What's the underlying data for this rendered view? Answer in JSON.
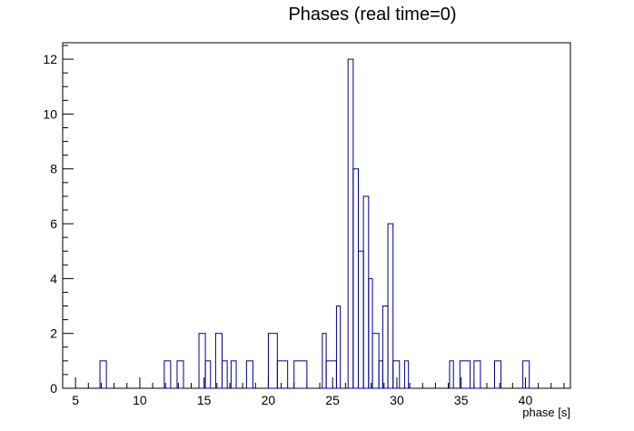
{
  "chart_data": {
    "type": "bar",
    "title": "Phases (real time=0)",
    "xlabel": "phase [s]",
    "ylabel": "",
    "xlim": [
      4,
      43.5
    ],
    "ylim": [
      0,
      12.6
    ],
    "bin_width": 0.5,
    "x_ticks": [
      5,
      10,
      15,
      20,
      25,
      30,
      35,
      40
    ],
    "y_ticks": [
      0,
      2,
      4,
      6,
      8,
      10,
      12
    ],
    "grid": false,
    "legend": "none",
    "line_color": "#00008b",
    "series": [
      {
        "values": [
          {
            "x0": 6.9,
            "x1": 7.4,
            "y": 1
          },
          {
            "x0": 11.9,
            "x1": 12.4,
            "y": 1
          },
          {
            "x0": 12.9,
            "x1": 13.4,
            "y": 1
          },
          {
            "x0": 14.6,
            "x1": 15.1,
            "y": 2
          },
          {
            "x0": 15.1,
            "x1": 15.5,
            "y": 1
          },
          {
            "x0": 15.9,
            "x1": 16.4,
            "y": 2
          },
          {
            "x0": 16.4,
            "x1": 16.8,
            "y": 1
          },
          {
            "x0": 17.1,
            "x1": 17.5,
            "y": 1
          },
          {
            "x0": 18.3,
            "x1": 18.8,
            "y": 1
          },
          {
            "x0": 20.0,
            "x1": 20.7,
            "y": 2
          },
          {
            "x0": 20.7,
            "x1": 21.5,
            "y": 1
          },
          {
            "x0": 22.0,
            "x1": 23.0,
            "y": 1
          },
          {
            "x0": 24.2,
            "x1": 24.5,
            "y": 2
          },
          {
            "x0": 24.5,
            "x1": 25.3,
            "y": 1
          },
          {
            "x0": 25.3,
            "x1": 25.6,
            "y": 3
          },
          {
            "x0": 26.2,
            "x1": 26.6,
            "y": 12
          },
          {
            "x0": 26.6,
            "x1": 27.0,
            "y": 8
          },
          {
            "x0": 27.0,
            "x1": 27.4,
            "y": 5
          },
          {
            "x0": 27.4,
            "x1": 27.8,
            "y": 7
          },
          {
            "x0": 27.8,
            "x1": 28.1,
            "y": 4
          },
          {
            "x0": 28.1,
            "x1": 28.6,
            "y": 2
          },
          {
            "x0": 28.6,
            "x1": 28.9,
            "y": 1
          },
          {
            "x0": 28.9,
            "x1": 29.3,
            "y": 3
          },
          {
            "x0": 29.3,
            "x1": 29.7,
            "y": 6
          },
          {
            "x0": 29.7,
            "x1": 30.2,
            "y": 1
          },
          {
            "x0": 30.6,
            "x1": 30.9,
            "y": 1
          },
          {
            "x0": 34.1,
            "x1": 34.4,
            "y": 1
          },
          {
            "x0": 34.9,
            "x1": 35.7,
            "y": 1
          },
          {
            "x0": 36.0,
            "x1": 36.5,
            "y": 1
          },
          {
            "x0": 37.6,
            "x1": 38.1,
            "y": 1
          },
          {
            "x0": 39.8,
            "x1": 40.3,
            "y": 1
          }
        ]
      }
    ]
  }
}
